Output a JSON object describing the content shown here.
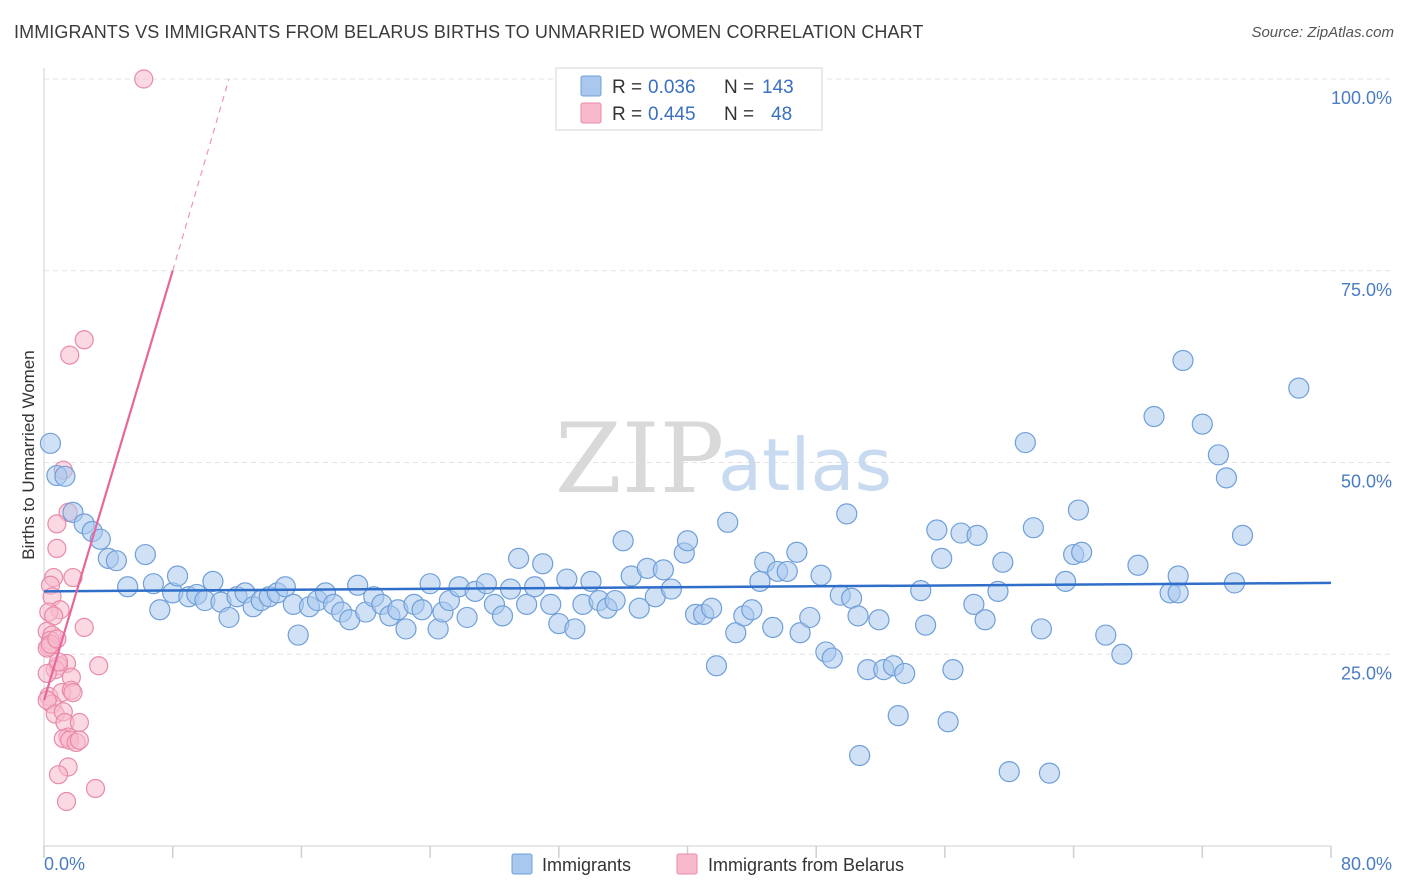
{
  "title": "IMMIGRANTS VS IMMIGRANTS FROM BELARUS BIRTHS TO UNMARRIED WOMEN CORRELATION CHART",
  "source": "Source: ZipAtlas.com",
  "watermark": {
    "zip": "ZIP",
    "atlas": "atlas"
  },
  "legend_top": [
    {
      "r_label": "R =",
      "r_value": "0.036",
      "n_label": "N =",
      "n_value": "143",
      "color": "#aac8ee",
      "stroke": "#6f9fd8"
    },
    {
      "r_label": "R =",
      "r_value": "0.445",
      "n_label": "N =",
      "n_value": "48",
      "color": "#f7b9cc",
      "stroke": "#e88aa8"
    }
  ],
  "legend_bottom": [
    {
      "label": "Immigrants",
      "color": "#aac8ee",
      "stroke": "#6f9fd8"
    },
    {
      "label": "Immigrants from Belarus",
      "color": "#f7b9cc",
      "stroke": "#e88aa8"
    }
  ],
  "chart_data": {
    "type": "scatter",
    "ylabel": "Births to Unmarried Women",
    "xlim": [
      0,
      80
    ],
    "ylim": [
      0,
      100
    ],
    "x_tick_labels": [
      "0.0%",
      "80.0%"
    ],
    "y_ticks": [
      25,
      50,
      75,
      100
    ],
    "y_tick_labels": [
      "25.0%",
      "50.0%",
      "75.0%",
      "100.0%"
    ],
    "grid": true,
    "series": [
      {
        "name": "Immigrants",
        "color": "#aac8ee",
        "stroke": "#6f9fd8",
        "trend": {
          "x0": 0,
          "y0": 33.2,
          "x1": 80,
          "y1": 34.3,
          "color": "#2f6fc9"
        },
        "points": [
          [
            0.4,
            52.5
          ],
          [
            0.8,
            48.3
          ],
          [
            1.3,
            48.2
          ],
          [
            1.8,
            43.5
          ],
          [
            2.5,
            42
          ],
          [
            3,
            41
          ],
          [
            3.5,
            40
          ],
          [
            4,
            37.5
          ],
          [
            4.5,
            37.2
          ],
          [
            5.2,
            33.8
          ],
          [
            6.3,
            38
          ],
          [
            6.8,
            34.2
          ],
          [
            7.2,
            30.8
          ],
          [
            8,
            33
          ],
          [
            8.3,
            35.2
          ],
          [
            9,
            32.5
          ],
          [
            9.5,
            32.8
          ],
          [
            10,
            32
          ],
          [
            10.5,
            34.5
          ],
          [
            11,
            31.8
          ],
          [
            11.5,
            29.8
          ],
          [
            12,
            32.5
          ],
          [
            12.5,
            33
          ],
          [
            13,
            31.2
          ],
          [
            13.5,
            32
          ],
          [
            14,
            32.5
          ],
          [
            14.5,
            33
          ],
          [
            15,
            33.8
          ],
          [
            15.5,
            31.5
          ],
          [
            15.8,
            27.5
          ],
          [
            16.5,
            31.2
          ],
          [
            17,
            32
          ],
          [
            17.5,
            33
          ],
          [
            18,
            31.5
          ],
          [
            18.5,
            30.5
          ],
          [
            19,
            29.5
          ],
          [
            19.5,
            34
          ],
          [
            20,
            30.5
          ],
          [
            20.5,
            32.5
          ],
          [
            21,
            31.5
          ],
          [
            21.5,
            30
          ],
          [
            22,
            30.8
          ],
          [
            22.5,
            28.3
          ],
          [
            23,
            31.5
          ],
          [
            23.5,
            30.8
          ],
          [
            24,
            34.2
          ],
          [
            24.5,
            28.3
          ],
          [
            24.8,
            30.5
          ],
          [
            25.2,
            32
          ],
          [
            25.8,
            33.8
          ],
          [
            26.3,
            29.8
          ],
          [
            26.8,
            33.2
          ],
          [
            27.5,
            34.2
          ],
          [
            28,
            31.5
          ],
          [
            28.5,
            30
          ],
          [
            29,
            33.5
          ],
          [
            29.5,
            37.5
          ],
          [
            30,
            31.5
          ],
          [
            30.5,
            33.8
          ],
          [
            31,
            36.8
          ],
          [
            31.5,
            31.5
          ],
          [
            32,
            29
          ],
          [
            32.5,
            34.8
          ],
          [
            33,
            28.3
          ],
          [
            33.5,
            31.5
          ],
          [
            34,
            34.5
          ],
          [
            34.5,
            32
          ],
          [
            35,
            31
          ],
          [
            35.5,
            32
          ],
          [
            36,
            39.8
          ],
          [
            36.5,
            35.2
          ],
          [
            37,
            31
          ],
          [
            37.5,
            36.2
          ],
          [
            38,
            32.5
          ],
          [
            38.5,
            36
          ],
          [
            39,
            33.5
          ],
          [
            39.8,
            38.2
          ],
          [
            40,
            39.8
          ],
          [
            40.5,
            30.2
          ],
          [
            41,
            30.2
          ],
          [
            41.5,
            31
          ],
          [
            41.8,
            23.5
          ],
          [
            42.5,
            42.2
          ],
          [
            43,
            27.8
          ],
          [
            43.5,
            30
          ],
          [
            44,
            30.8
          ],
          [
            44.5,
            34.5
          ],
          [
            44.8,
            37
          ],
          [
            45.3,
            28.5
          ],
          [
            45.6,
            35.8
          ],
          [
            46.2,
            35.8
          ],
          [
            46.8,
            38.3
          ],
          [
            47,
            27.8
          ],
          [
            47.6,
            29.8
          ],
          [
            48.3,
            35.3
          ],
          [
            48.6,
            25.3
          ],
          [
            49,
            24.5
          ],
          [
            49.5,
            32.7
          ],
          [
            49.9,
            43.3
          ],
          [
            50.2,
            32.3
          ],
          [
            50.6,
            30
          ],
          [
            51.2,
            23
          ],
          [
            51.9,
            29.5
          ],
          [
            52.2,
            23
          ],
          [
            52.8,
            23.5
          ],
          [
            53.1,
            17
          ],
          [
            53.5,
            22.5
          ],
          [
            50.7,
            11.8
          ],
          [
            54.5,
            33.3
          ],
          [
            54.8,
            28.8
          ],
          [
            55.5,
            41.2
          ],
          [
            55.8,
            37.5
          ],
          [
            56.2,
            16.2
          ],
          [
            56.5,
            23
          ],
          [
            57,
            40.8
          ],
          [
            57.8,
            31.5
          ],
          [
            58,
            40.5
          ],
          [
            58.5,
            29.5
          ],
          [
            59.3,
            33.2
          ],
          [
            59.6,
            37
          ],
          [
            60,
            9.7
          ],
          [
            61,
            52.6
          ],
          [
            61.5,
            41.5
          ],
          [
            62,
            28.3
          ],
          [
            62.5,
            9.5
          ],
          [
            63.5,
            34.5
          ],
          [
            64,
            38
          ],
          [
            64.3,
            43.8
          ],
          [
            64.5,
            38.3
          ],
          [
            66,
            27.5
          ],
          [
            67,
            25
          ],
          [
            68,
            36.6
          ],
          [
            69,
            56
          ],
          [
            70,
            33
          ],
          [
            70.5,
            35.2
          ],
          [
            70.8,
            63.3
          ],
          [
            72,
            55
          ],
          [
            73,
            51
          ],
          [
            73.5,
            48
          ],
          [
            74,
            34.3
          ],
          [
            74.5,
            40.5
          ],
          [
            78,
            59.7
          ],
          [
            70.5,
            33
          ]
        ]
      },
      {
        "name": "Immigrants from Belarus",
        "color": "#f7b9cc",
        "stroke": "#e88aa8",
        "trend": {
          "x0": 0,
          "y0": 19,
          "x1": 8,
          "y1": 75,
          "color": "#e8679a",
          "dash_to": {
            "x": 11.5,
            "y": 100
          }
        },
        "points": [
          [
            6.2,
            100
          ],
          [
            2.5,
            66
          ],
          [
            1.6,
            64
          ],
          [
            1.2,
            49
          ],
          [
            1.5,
            43.5
          ],
          [
            0.8,
            42
          ],
          [
            0.8,
            38.8
          ],
          [
            0.6,
            35
          ],
          [
            1.8,
            35
          ],
          [
            0.4,
            34
          ],
          [
            0.5,
            32.5
          ],
          [
            1,
            30.8
          ],
          [
            0.3,
            30.5
          ],
          [
            0.6,
            30
          ],
          [
            2.5,
            28.5
          ],
          [
            0.2,
            28
          ],
          [
            0.5,
            27.5
          ],
          [
            0.4,
            26.8
          ],
          [
            0.3,
            26
          ],
          [
            0.2,
            25.8
          ],
          [
            1.4,
            23.8
          ],
          [
            0.9,
            23.5
          ],
          [
            0.7,
            23
          ],
          [
            0.2,
            22.5
          ],
          [
            3.4,
            23.5
          ],
          [
            1.7,
            22
          ],
          [
            0.3,
            19.5
          ],
          [
            1.1,
            20
          ],
          [
            1.7,
            20.3
          ],
          [
            1.8,
            20
          ],
          [
            0.5,
            18.5
          ],
          [
            0.2,
            19
          ],
          [
            0.7,
            17.2
          ],
          [
            1.2,
            17.5
          ],
          [
            1.3,
            16.1
          ],
          [
            2.2,
            16.1
          ],
          [
            1.5,
            14.2
          ],
          [
            1.2,
            14
          ],
          [
            1.6,
            13.8
          ],
          [
            2,
            13.5
          ],
          [
            2.2,
            13.8
          ],
          [
            1.5,
            10.3
          ],
          [
            0.9,
            9.3
          ],
          [
            1.4,
            5.8
          ],
          [
            3.2,
            7.5
          ],
          [
            0.4,
            26.3
          ],
          [
            0.8,
            27
          ],
          [
            0.9,
            24
          ]
        ]
      }
    ]
  }
}
